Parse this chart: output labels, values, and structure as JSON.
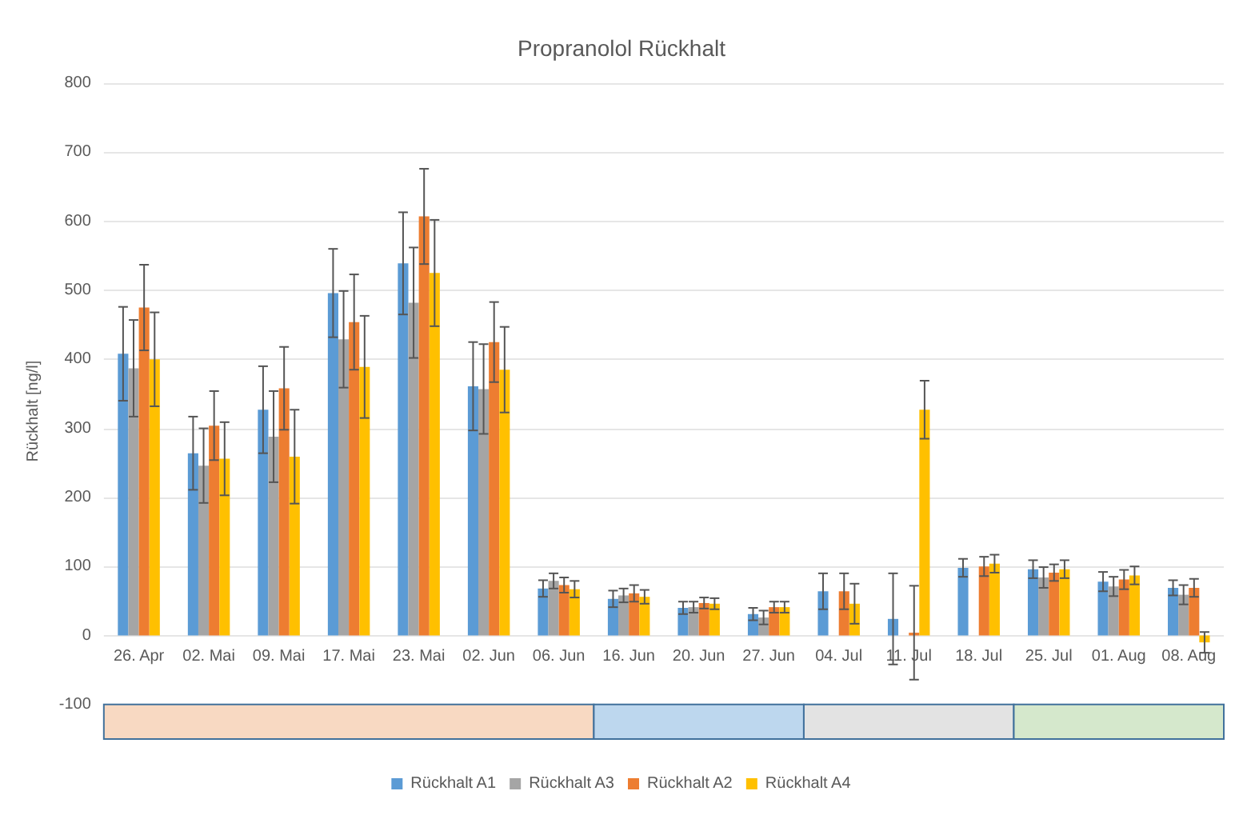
{
  "chart_data": {
    "type": "bar",
    "title": "Propranolol Rückhalt",
    "ylabel": "Rückhalt [ng/l]",
    "categories": [
      "26. Apr",
      "02. Mai",
      "09. Mai",
      "17. Mai",
      "23. Mai",
      "02. Jun",
      "06. Jun",
      "16. Jun",
      "20. Jun",
      "27. Jun",
      "04. Jul",
      "11. Jul",
      "18. Jul",
      "25. Jul",
      "01. Aug",
      "08. Aug"
    ],
    "series": [
      {
        "name": "Rückhalt A1",
        "color": "#5b9bd5",
        "values": [
          408,
          264,
          327,
          496,
          539,
          361,
          68,
          53,
          40,
          31,
          64,
          24,
          98,
          96,
          78,
          69
        ],
        "errors": [
          68,
          53,
          63,
          64,
          74,
          64,
          12,
          12,
          9,
          9,
          26,
          66,
          13,
          13,
          14,
          11
        ]
      },
      {
        "name": "Rückhalt A3",
        "color": "#a5a5a5",
        "values": [
          387,
          246,
          288,
          429,
          482,
          357,
          79,
          58,
          41,
          26,
          null,
          null,
          null,
          84,
          71,
          59
        ],
        "errors": [
          70,
          54,
          66,
          70,
          80,
          65,
          11,
          10,
          8,
          10,
          null,
          null,
          null,
          15,
          14,
          14
        ]
      },
      {
        "name": "Rückhalt A2",
        "color": "#ed7d31",
        "values": [
          475,
          304,
          358,
          454,
          607,
          425,
          73,
          61,
          47,
          41,
          64,
          4,
          100,
          91,
          81,
          69
        ],
        "errors": [
          62,
          50,
          60,
          69,
          69,
          58,
          11,
          12,
          8,
          8,
          26,
          68,
          14,
          12,
          14,
          13
        ]
      },
      {
        "name": "Rückhalt A4",
        "color": "#ffc000",
        "values": [
          400,
          256,
          259,
          389,
          525,
          385,
          67,
          56,
          46,
          41,
          46,
          327,
          104,
          96,
          87,
          -10
        ],
        "errors": [
          68,
          53,
          68,
          74,
          77,
          62,
          12,
          10,
          8,
          8,
          29,
          42,
          13,
          13,
          13,
          15
        ]
      }
    ],
    "ylim": [
      -150,
      800
    ],
    "yticks": [
      -100,
      0,
      100,
      200,
      300,
      400,
      500,
      600,
      700,
      800
    ],
    "grid": "y",
    "legend": "bottom",
    "bands": [
      {
        "axis": "x",
        "from": "26. Apr",
        "to": "06. Jun",
        "color": "#f8d9c2"
      },
      {
        "axis": "x",
        "from": "16. Jun",
        "to": "27. Jun",
        "color": "#bdd7ee"
      },
      {
        "axis": "x",
        "from": "04. Jul",
        "to": "18. Jul",
        "color": "#e3e3e3"
      },
      {
        "axis": "x",
        "from": "25. Jul",
        "to": "08. Aug",
        "color": "#d5e8cc"
      }
    ]
  }
}
